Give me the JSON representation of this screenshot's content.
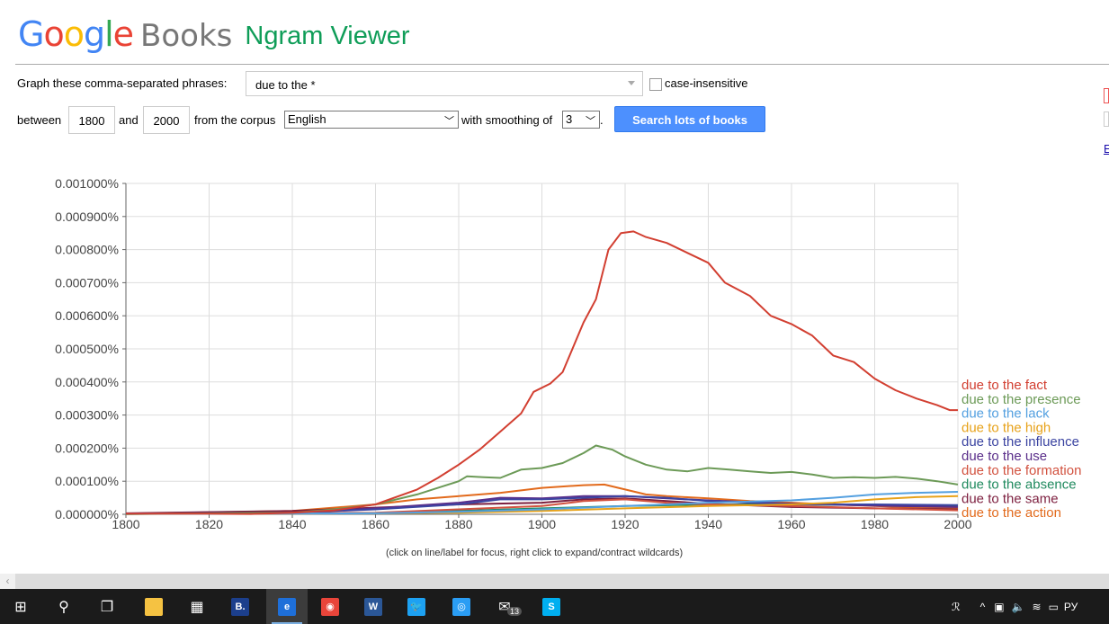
{
  "header": {
    "logo_google": "Google",
    "logo_books": "Books",
    "logo_viewer": "Ngram Viewer"
  },
  "form": {
    "phrases_label": "Graph these comma-separated phrases:",
    "phrases_value": "due to the *",
    "case_insensitive_label": "case-insensitive",
    "between_label": "between",
    "year_start": "1800",
    "and_label": "and",
    "year_end": "2000",
    "corpus_label": "from the corpus",
    "corpus_value": "English",
    "smoothing_label": "with smoothing of",
    "smoothing_value": "3",
    "search_button": "Search lots of books",
    "right_cut_link": "E"
  },
  "hint": "(click on line/label for focus, right click to expand/contract wildcards)",
  "chart_data": {
    "type": "line",
    "xlim": [
      1800,
      2000
    ],
    "ylim": [
      0,
      0.001
    ],
    "x_ticks": [
      "1800",
      "1820",
      "1840",
      "1860",
      "1880",
      "1900",
      "1920",
      "1940",
      "1960",
      "1980",
      "2000"
    ],
    "y_ticks": [
      "0.000000%",
      "0.000100%",
      "0.000200%",
      "0.000300%",
      "0.000400%",
      "0.000500%",
      "0.000600%",
      "0.000700%",
      "0.000800%",
      "0.000900%",
      "0.001000%"
    ],
    "grid": true,
    "legend_placement": "right",
    "series": [
      {
        "name": "due to the fact",
        "color": "#d23f31",
        "points": [
          [
            1800,
            2e-06
          ],
          [
            1820,
            2e-06
          ],
          [
            1830,
            1e-06
          ],
          [
            1840,
            5e-06
          ],
          [
            1850,
            1.2e-05
          ],
          [
            1860,
            3e-05
          ],
          [
            1870,
            7.5e-05
          ],
          [
            1875,
            0.00011
          ],
          [
            1880,
            0.00015
          ],
          [
            1885,
            0.000195
          ],
          [
            1890,
            0.00025
          ],
          [
            1895,
            0.000305
          ],
          [
            1898,
            0.00037
          ],
          [
            1902,
            0.000395
          ],
          [
            1905,
            0.00043
          ],
          [
            1910,
            0.00058
          ],
          [
            1913,
            0.00065
          ],
          [
            1916,
            0.0008
          ],
          [
            1919,
            0.00085
          ],
          [
            1922,
            0.000855
          ],
          [
            1925,
            0.000838
          ],
          [
            1930,
            0.00082
          ],
          [
            1935,
            0.00079
          ],
          [
            1940,
            0.00076
          ],
          [
            1944,
            0.0007
          ],
          [
            1950,
            0.00066
          ],
          [
            1955,
            0.0006
          ],
          [
            1960,
            0.000575
          ],
          [
            1965,
            0.00054
          ],
          [
            1970,
            0.00048
          ],
          [
            1975,
            0.00046
          ],
          [
            1980,
            0.00041
          ],
          [
            1985,
            0.000375
          ],
          [
            1990,
            0.00035
          ],
          [
            1995,
            0.00033
          ],
          [
            1998,
            0.000315
          ],
          [
            2000,
            0.000315
          ]
        ]
      },
      {
        "name": "due to the presence",
        "color": "#6c9a57",
        "points": [
          [
            1800,
            1e-06
          ],
          [
            1840,
            5e-06
          ],
          [
            1850,
            1.5e-05
          ],
          [
            1860,
            3e-05
          ],
          [
            1870,
            6e-05
          ],
          [
            1875,
            8e-05
          ],
          [
            1880,
            0.0001
          ],
          [
            1882,
            0.000115
          ],
          [
            1886,
            0.000112
          ],
          [
            1890,
            0.00011
          ],
          [
            1895,
            0.000135
          ],
          [
            1900,
            0.00014
          ],
          [
            1905,
            0.000155
          ],
          [
            1910,
            0.000185
          ],
          [
            1913,
            0.000208
          ],
          [
            1917,
            0.000195
          ],
          [
            1920,
            0.000175
          ],
          [
            1925,
            0.00015
          ],
          [
            1930,
            0.000135
          ],
          [
            1935,
            0.00013
          ],
          [
            1940,
            0.00014
          ],
          [
            1945,
            0.000135
          ],
          [
            1950,
            0.00013
          ],
          [
            1955,
            0.000125
          ],
          [
            1960,
            0.000128
          ],
          [
            1965,
            0.00012
          ],
          [
            1970,
            0.00011
          ],
          [
            1975,
            0.000112
          ],
          [
            1980,
            0.00011
          ],
          [
            1985,
            0.000113
          ],
          [
            1990,
            0.000108
          ],
          [
            1995,
            0.0001
          ],
          [
            2000,
            9e-05
          ]
        ]
      },
      {
        "name": "due to the lack",
        "color": "#54a0e0",
        "points": [
          [
            1800,
            1e-06
          ],
          [
            1860,
            3e-06
          ],
          [
            1880,
            8e-06
          ],
          [
            1900,
            1.5e-05
          ],
          [
            1920,
            2.5e-05
          ],
          [
            1940,
            3.5e-05
          ],
          [
            1960,
            4.2e-05
          ],
          [
            1970,
            5e-05
          ],
          [
            1980,
            6e-05
          ],
          [
            1990,
            6.5e-05
          ],
          [
            2000,
            6.8e-05
          ]
        ]
      },
      {
        "name": "due to the high",
        "color": "#e7a21a",
        "points": [
          [
            1800,
            1e-06
          ],
          [
            1860,
            3e-06
          ],
          [
            1880,
            5e-06
          ],
          [
            1900,
            1e-05
          ],
          [
            1920,
            1.8e-05
          ],
          [
            1940,
            2.5e-05
          ],
          [
            1960,
            3e-05
          ],
          [
            1970,
            3.5e-05
          ],
          [
            1980,
            4.5e-05
          ],
          [
            1990,
            5.2e-05
          ],
          [
            2000,
            5.5e-05
          ]
        ]
      },
      {
        "name": "due to the influence",
        "color": "#3b44a1",
        "points": [
          [
            1800,
            2e-06
          ],
          [
            1840,
            5e-06
          ],
          [
            1860,
            1.5e-05
          ],
          [
            1880,
            3e-05
          ],
          [
            1890,
            4.5e-05
          ],
          [
            1900,
            4.5e-05
          ],
          [
            1910,
            5e-05
          ],
          [
            1920,
            5.5e-05
          ],
          [
            1930,
            5e-05
          ],
          [
            1940,
            4e-05
          ],
          [
            1960,
            3e-05
          ],
          [
            1980,
            3e-05
          ],
          [
            2000,
            2.8e-05
          ]
        ]
      },
      {
        "name": "due to the use",
        "color": "#5a2e8a",
        "points": [
          [
            1800,
            2e-06
          ],
          [
            1840,
            5e-06
          ],
          [
            1860,
            1.8e-05
          ],
          [
            1880,
            3.5e-05
          ],
          [
            1890,
            5e-05
          ],
          [
            1900,
            4.8e-05
          ],
          [
            1910,
            5.5e-05
          ],
          [
            1920,
            5.5e-05
          ],
          [
            1930,
            4.8e-05
          ],
          [
            1940,
            4.2e-05
          ],
          [
            1960,
            3.2e-05
          ],
          [
            1980,
            2.6e-05
          ],
          [
            2000,
            2.2e-05
          ]
        ]
      },
      {
        "name": "due to the formation",
        "color": "#d2523f",
        "points": [
          [
            1800,
            1e-06
          ],
          [
            1860,
            5e-06
          ],
          [
            1880,
            1.5e-05
          ],
          [
            1900,
            2.5e-05
          ],
          [
            1910,
            4e-05
          ],
          [
            1920,
            4.5e-05
          ],
          [
            1930,
            3.5e-05
          ],
          [
            1940,
            3e-05
          ],
          [
            1960,
            2.5e-05
          ],
          [
            1980,
            1.8e-05
          ],
          [
            2000,
            1.2e-05
          ]
        ]
      },
      {
        "name": "due to the absence",
        "color": "#1f8a5e",
        "points": [
          [
            1800,
            1e-06
          ],
          [
            1860,
            4e-06
          ],
          [
            1880,
            1e-05
          ],
          [
            1900,
            1.8e-05
          ],
          [
            1920,
            2.5e-05
          ],
          [
            1940,
            3e-05
          ],
          [
            1960,
            3e-05
          ],
          [
            1980,
            2.8e-05
          ],
          [
            2000,
            2.5e-05
          ]
        ]
      },
      {
        "name": "due to the same",
        "color": "#7d1f3f",
        "points": [
          [
            1800,
            3e-06
          ],
          [
            1840,
            1e-05
          ],
          [
            1860,
            2e-05
          ],
          [
            1880,
            3e-05
          ],
          [
            1900,
            3.5e-05
          ],
          [
            1910,
            4.5e-05
          ],
          [
            1920,
            4.8e-05
          ],
          [
            1930,
            4e-05
          ],
          [
            1940,
            3.2e-05
          ],
          [
            1960,
            2.2e-05
          ],
          [
            1980,
            1.8e-05
          ],
          [
            2000,
            1.5e-05
          ]
        ]
      },
      {
        "name": "due to the action",
        "color": "#e26a1c",
        "points": [
          [
            1800,
            2e-06
          ],
          [
            1840,
            1e-05
          ],
          [
            1860,
            3e-05
          ],
          [
            1870,
            4.5e-05
          ],
          [
            1880,
            5.5e-05
          ],
          [
            1890,
            6.5e-05
          ],
          [
            1900,
            8e-05
          ],
          [
            1910,
            8.8e-05
          ],
          [
            1915,
            9e-05
          ],
          [
            1920,
            7.5e-05
          ],
          [
            1925,
            6e-05
          ],
          [
            1930,
            5.5e-05
          ],
          [
            1940,
            4.8e-05
          ],
          [
            1950,
            4e-05
          ],
          [
            1960,
            3.5e-05
          ],
          [
            1970,
            3e-05
          ],
          [
            1980,
            2.5e-05
          ],
          [
            1990,
            2e-05
          ],
          [
            2000,
            1.8e-05
          ]
        ]
      }
    ]
  },
  "taskbar": {
    "items": [
      {
        "name": "start-button",
        "glyph": "⊞"
      },
      {
        "name": "search-icon",
        "glyph": "⚲"
      },
      {
        "name": "task-view-icon",
        "glyph": "❐"
      },
      {
        "name": "file-explorer-icon",
        "glyph": "",
        "color": "#f5c242"
      },
      {
        "name": "store-icon",
        "glyph": "▦"
      },
      {
        "name": "booking-icon",
        "glyph": "B.",
        "color": "#1c3f8c"
      },
      {
        "name": "edge-icon",
        "glyph": "e",
        "color": "#1e6fd9"
      },
      {
        "name": "chrome-icon",
        "glyph": "◉",
        "color": "#e9453a"
      },
      {
        "name": "word-icon",
        "glyph": "W",
        "color": "#2b5797"
      },
      {
        "name": "twitter-icon",
        "glyph": "🐦",
        "color": "#1da1f2"
      },
      {
        "name": "camera-app-icon",
        "glyph": "◎",
        "color": "#2a9df4"
      },
      {
        "name": "mail-icon",
        "glyph": "✉"
      },
      {
        "name": "skype-icon",
        "glyph": "S",
        "color": "#00aff0"
      }
    ],
    "mail_badge": "13",
    "tray_language": "РУ"
  }
}
